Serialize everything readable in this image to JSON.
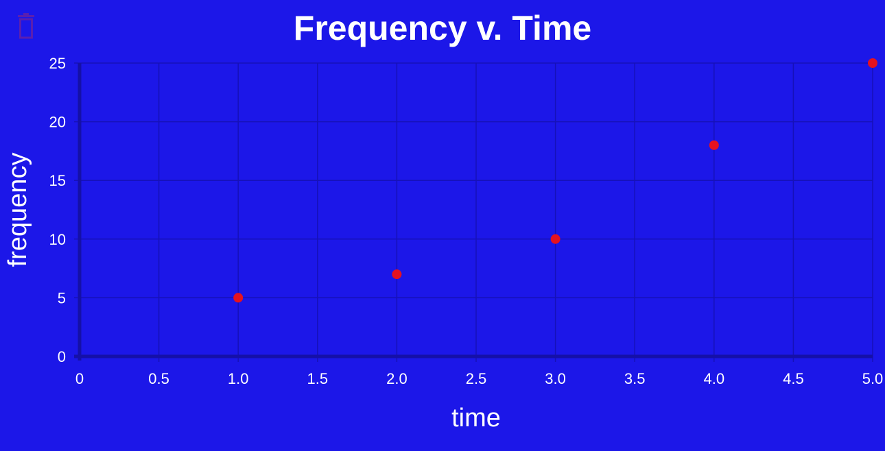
{
  "colors": {
    "background": "#1c17e8",
    "grid": "#1611b8",
    "axis": "#1510a8",
    "point": "#e5121f",
    "text": "#ffffff",
    "trash_icon": "#5a1fb0"
  },
  "toolbar": {
    "delete_icon": "trash-icon"
  },
  "chart_data": {
    "type": "scatter",
    "title": "Frequency v. Time",
    "xlabel": "time",
    "ylabel": "frequency",
    "xlim": [
      0,
      5
    ],
    "ylim": [
      0,
      25
    ],
    "x_ticks": [
      "0",
      "0.5",
      "1.0",
      "1.5",
      "2.0",
      "2.5",
      "3.0",
      "3.5",
      "4.0",
      "4.5",
      "5.0"
    ],
    "y_ticks": [
      "0",
      "5",
      "10",
      "15",
      "20",
      "25"
    ],
    "grid": true,
    "legend": "none",
    "series": [
      {
        "x": [
          1,
          2,
          3,
          4,
          5
        ],
        "y": [
          5,
          7,
          10,
          18,
          25
        ]
      }
    ]
  }
}
